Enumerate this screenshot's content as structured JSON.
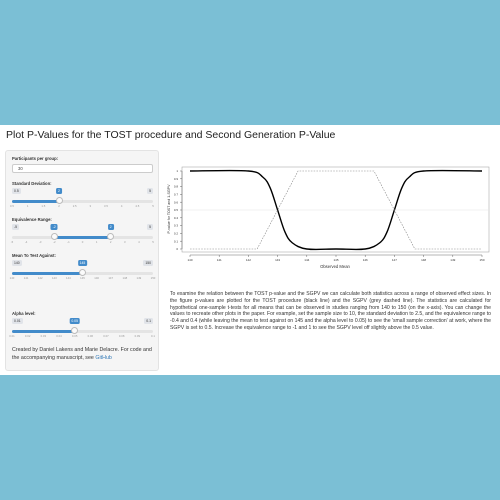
{
  "title": "Plot P-Values for the TOST procedure and Second Generation P-Value",
  "sidebar": {
    "n_label": "Participants per group:",
    "n_value": "30",
    "sd": {
      "label": "Standard Deviation:",
      "min_label": "0.5",
      "max_label": "5",
      "current_label": "2",
      "min": 0.5,
      "max": 5,
      "value": 2,
      "ticks": [
        "0.5",
        "1",
        "1.5",
        "2",
        "2.5",
        "3",
        "3.5",
        "4",
        "4.5",
        "5"
      ]
    },
    "eq": {
      "label": "Equivalence Range:",
      "min_label": "-5",
      "max_label": "5",
      "low_label": "-2",
      "high_label": "2",
      "min": -5,
      "max": 5,
      "low": -2,
      "high": 2,
      "ticks": [
        "-5",
        "-4",
        "-3",
        "-2",
        "-1",
        "0",
        "1",
        "2",
        "3",
        "4",
        "5"
      ]
    },
    "mean": {
      "label": "Mean To Test Against:",
      "min_label": "140",
      "max_label": "150",
      "current_label": "145",
      "min": 140,
      "max": 150,
      "value": 145,
      "ticks": [
        "140",
        "141",
        "142",
        "143",
        "144",
        "145",
        "146",
        "147",
        "148",
        "149",
        "150"
      ]
    },
    "alpha": {
      "label": "Alpha level:",
      "min_label": "0.01",
      "max_label": "0.1",
      "current_label": "0.05",
      "min": 0.01,
      "max": 0.1,
      "value": 0.05,
      "ticks": [
        "0.01",
        "0.02",
        "0.03",
        "0.04",
        "0.05",
        "0.06",
        "0.07",
        "0.08",
        "0.09",
        "0.1"
      ]
    },
    "credit_text": "Created by Daniel Lakens and Marie Delacre. For code and the accompanying manuscript, see",
    "credit_link": "GitHub"
  },
  "description": "To examine the relation between the TOST p-value and the SGPV we can calculate both statistics across a range of observed effect sizes. In the figure p-values are plotted for the TOST procedure (black line) and the SGPV (grey dashed line). The statistics are calculated for hypothetical one-sample t-tests for all means that can be observed in studies ranging from 140 to 150 (on the x-axis). You can change the values to recreate other plots in the paper. For example, set the sample size to 10, the standard deviation to 2.5, and the equivalence range to -0.4 and 0.4 (while leaving the mean to test against on 145 and the alpha level to 0.05) to see the 'small sample correction' at work, where the SGPV is set to 0.5. Increase the equivalence range to -1 and 1 to see the SGPV level off slightly above the 0.5 value.",
  "chart_data": {
    "type": "line",
    "xlabel": "Observed Mean",
    "ylabel": "P-value for TOST and 1-SGPV",
    "xlim": [
      140,
      150
    ],
    "ylim": [
      0,
      1
    ],
    "x_ticks": [
      "140",
      "141",
      "142",
      "143",
      "144",
      "145",
      "146",
      "147",
      "148",
      "149",
      "150"
    ],
    "y_ticks": [
      "0",
      "0.1",
      "0.2",
      "0.3",
      "0.4",
      "0.5",
      "0.6",
      "0.7",
      "0.8",
      "0.9",
      "1"
    ],
    "reference_lines": [
      0.5
    ],
    "series": [
      {
        "style": "solid-black",
        "x": [
          140,
          142,
          142.5,
          142.75,
          143,
          143.25,
          143.5,
          144,
          145,
          146,
          146.5,
          146.75,
          147,
          147.25,
          147.5,
          148,
          150
        ],
        "y": [
          1,
          1,
          0.92,
          0.78,
          0.5,
          0.22,
          0.08,
          0,
          0,
          0,
          0.08,
          0.22,
          0.5,
          0.78,
          0.92,
          1,
          1
        ]
      },
      {
        "style": "dashed-grey",
        "x": [
          140,
          142.3,
          143.7,
          146.3,
          147.7,
          150
        ],
        "y": [
          0,
          0,
          1,
          1,
          0,
          0
        ]
      }
    ]
  }
}
